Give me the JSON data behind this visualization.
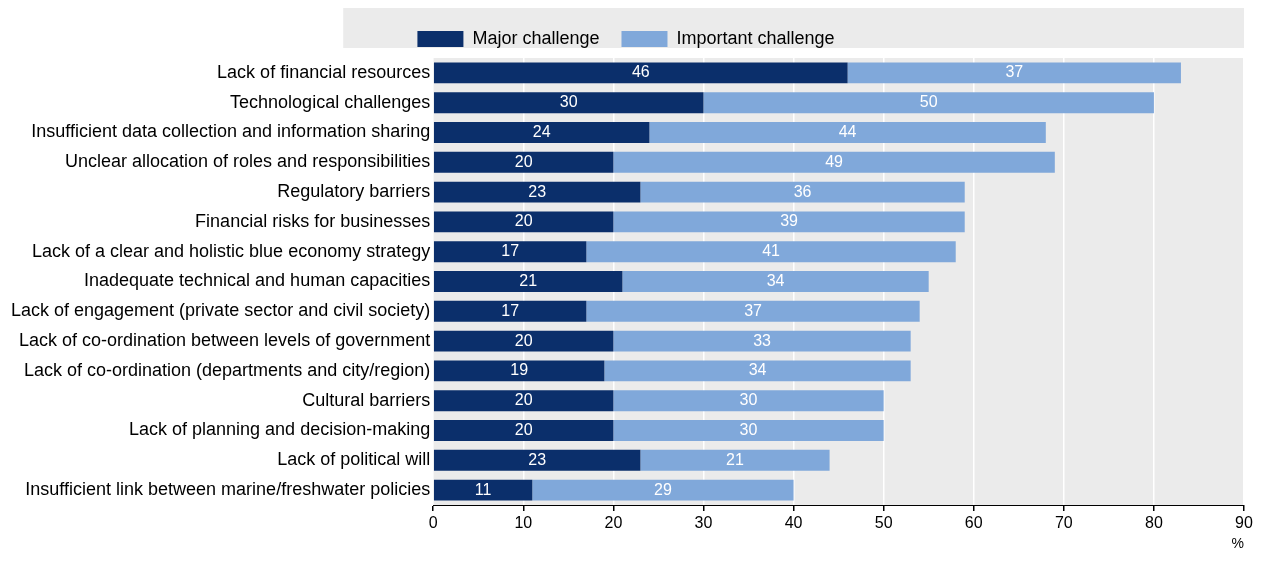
{
  "chart_data": {
    "type": "bar",
    "orientation": "horizontal",
    "stacked": true,
    "xlabel": "%",
    "categories": [
      "Lack of financial resources",
      "Technological challenges",
      "Insufficient data collection and information sharing",
      "Unclear allocation of roles and responsibilities",
      "Regulatory barriers",
      "Financial risks for businesses",
      "Lack of a clear and holistic blue economy strategy",
      "Inadequate technical and human capacities",
      "Lack of engagement (private sector and civil society)",
      "Lack of co-ordination between levels of government",
      "Lack of co-ordination (departments and city/region)",
      "Cultural barriers",
      "Lack of planning and decision-making",
      "Lack of political will",
      "Insufficient link between marine/freshwater policies"
    ],
    "series": [
      {
        "name": "Major challenge",
        "color": "#0b2f6b",
        "values": [
          46,
          30,
          24,
          20,
          23,
          20,
          17,
          21,
          17,
          20,
          19,
          20,
          20,
          23,
          11
        ]
      },
      {
        "name": "Important challenge",
        "color": "#80a8da",
        "values": [
          37,
          50,
          44,
          49,
          36,
          39,
          41,
          34,
          37,
          33,
          34,
          30,
          30,
          21,
          29
        ]
      }
    ],
    "xlim": [
      0,
      90
    ],
    "xticks": [
      0,
      10,
      20,
      30,
      40,
      50,
      60,
      70,
      80,
      90
    ],
    "grid": "x",
    "legend": "top",
    "data_labels": true
  }
}
